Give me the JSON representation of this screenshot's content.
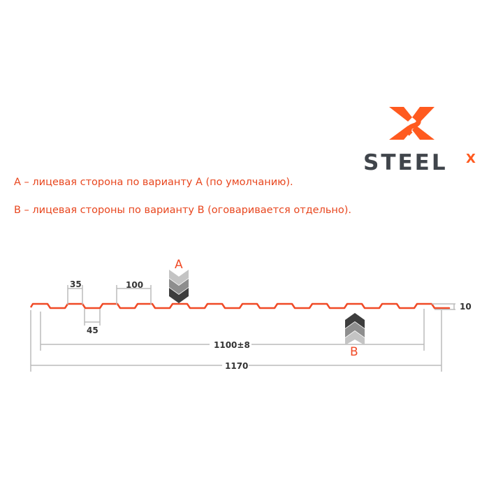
{
  "logo": {
    "text": "STEEL",
    "superscript": "X",
    "brand_color": "#ff5a1f",
    "text_color": "#40454b"
  },
  "notes": [
    "A – лицевая сторона по варианту A (по умолчанию).",
    "B – лицевая стороны по варианту B (оговаривается отдельно)."
  ],
  "profile": {
    "color": "#f04a26",
    "corrugations": 12
  },
  "dimensions": {
    "crest_width": "35",
    "valley_width": "45",
    "pitch": "100",
    "useful_width": "1100±8",
    "total_width": "1170",
    "height": "10"
  },
  "sides": {
    "a": "A",
    "b": "B"
  }
}
